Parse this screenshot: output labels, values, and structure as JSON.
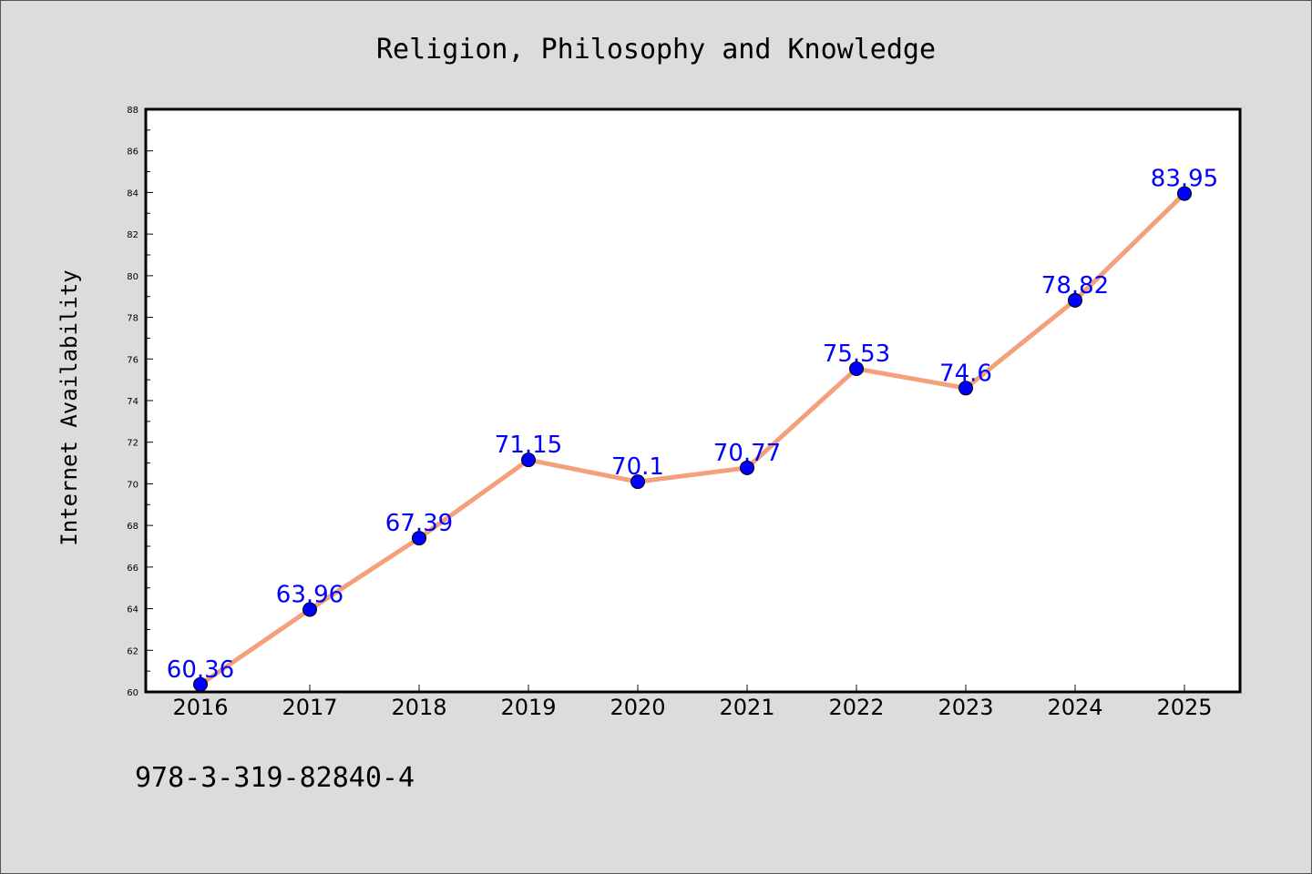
{
  "chart_data": {
    "type": "line",
    "title": "Religion, Philosophy and Knowledge",
    "xlabel": "",
    "ylabel": "Internet Availability",
    "categories": [
      "2016",
      "2017",
      "2018",
      "2019",
      "2020",
      "2021",
      "2022",
      "2023",
      "2024",
      "2025"
    ],
    "series": [
      {
        "values": [
          60.36,
          63.96,
          67.39,
          71.15,
          70.1,
          70.77,
          75.53,
          74.6,
          78.82,
          83.95
        ],
        "labels": [
          "60.36",
          "63.96",
          "67.39",
          "71.15",
          "70.1",
          "70.77",
          "75.53",
          "74.6",
          "78.82",
          "83.95"
        ],
        "line_color": "#f4a07a",
        "marker_color": "#0000ff"
      }
    ],
    "ylim": [
      60,
      88
    ],
    "yticks": [
      "60",
      "62",
      "64",
      "66",
      "68",
      "70",
      "72",
      "74",
      "76",
      "78",
      "80",
      "82",
      "84",
      "86",
      "88"
    ],
    "grid": false,
    "legend": "none",
    "background": "#dcdcdc",
    "plot_background": "#ffffff"
  },
  "footer": {
    "isbn": "978-3-319-82840-4"
  }
}
